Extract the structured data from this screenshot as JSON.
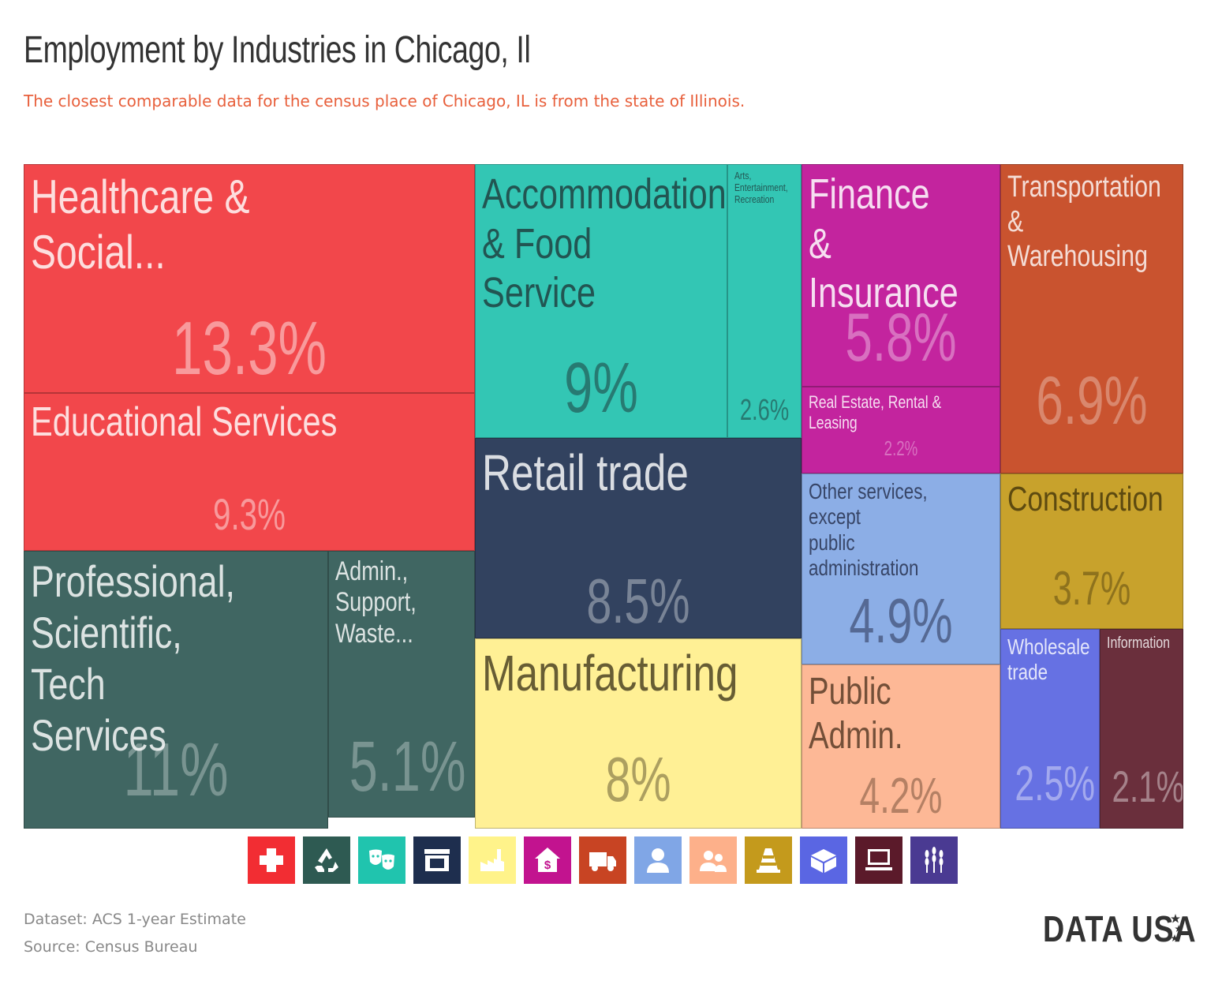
{
  "title": "Employment by Industries in Chicago, Il",
  "subtitle": "The closest comparable data for the census place of Chicago, IL is from the state of Illinois.",
  "chart_data": {
    "type": "treemap",
    "unit": "%",
    "tiles": [
      {
        "label": "Healthcare & Social...",
        "value_label": "13.3%",
        "value": 13.3,
        "color": "#f2474b"
      },
      {
        "label": "Educational Services",
        "value_label": "9.3%",
        "value": 9.3,
        "color": "#f2474b"
      },
      {
        "label": "Professional,\nScientific, Tech\nServices",
        "value_label": "11%",
        "value": 11,
        "color": "#406662"
      },
      {
        "label": "Admin.,\nSupport,\nWaste...",
        "value_label": "5.1%",
        "value": 5.1,
        "color": "#406662"
      },
      {
        "label": "Accommodation\n& Food Service",
        "value_label": "9%",
        "value": 9,
        "color": "#33c6b4"
      },
      {
        "label": "Arts,\nEntertainment,\nRecreation",
        "value_label": "2.6%",
        "value": 2.6,
        "color": "#33c6b4"
      },
      {
        "label": "Retail trade",
        "value_label": "8.5%",
        "value": 8.5,
        "color": "#32425f"
      },
      {
        "label": "Manufacturing",
        "value_label": "8%",
        "value": 8,
        "color": "#fff095"
      },
      {
        "label": "Finance &\nInsurance",
        "value_label": "5.8%",
        "value": 5.8,
        "color": "#c3249e"
      },
      {
        "label": "Real Estate, Rental & Leasing",
        "value_label": "2.2%",
        "value": 2.2,
        "color": "#c3249e"
      },
      {
        "label": "Other services, except\npublic administration",
        "value_label": "4.9%",
        "value": 4.9,
        "color": "#8caee6"
      },
      {
        "label": "Public Admin.",
        "value_label": "4.2%",
        "value": 4.2,
        "color": "#fdb896"
      },
      {
        "label": "Transportation\n& Warehousing",
        "value_label": "6.9%",
        "value": 6.9,
        "color": "#c9532f"
      },
      {
        "label": "Construction",
        "value_label": "3.7%",
        "value": 3.7,
        "color": "#c8a22c"
      },
      {
        "label": "Wholesale\ntrade",
        "value_label": "2.5%",
        "value": 2.5,
        "color": "#6671e3"
      },
      {
        "label": "Information",
        "value_label": "2.1%",
        "value": 2.1,
        "color": "#6a2f3c"
      }
    ]
  },
  "legend_icons": [
    {
      "name": "healthcare-icon",
      "color": "#f22d33"
    },
    {
      "name": "recycle-icon",
      "color": "#2e5a52"
    },
    {
      "name": "theater-masks-icon",
      "color": "#20c4ae"
    },
    {
      "name": "storefront-icon",
      "color": "#1e2e4e"
    },
    {
      "name": "factory-icon",
      "color": "#fff38a"
    },
    {
      "name": "house-dollar-icon",
      "color": "#c2138f"
    },
    {
      "name": "truck-icon",
      "color": "#c84423"
    },
    {
      "name": "person-icon",
      "color": "#80a6e6"
    },
    {
      "name": "people-icon",
      "color": "#fdb08a"
    },
    {
      "name": "traffic-cone-icon",
      "color": "#c49a1c"
    },
    {
      "name": "boxes-icon",
      "color": "#5a66e3"
    },
    {
      "name": "computer-icon",
      "color": "#5b1a2a"
    },
    {
      "name": "wheat-icon",
      "color": "#4a3a92"
    }
  ],
  "footer": {
    "dataset": "Dataset: ACS 1-year Estimate",
    "source": "Source: Census Bureau"
  },
  "logo": "DATA USA"
}
